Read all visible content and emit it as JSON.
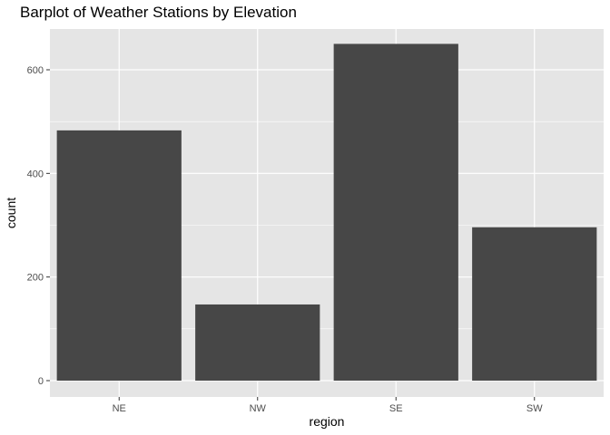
{
  "chart_data": {
    "type": "bar",
    "title": "Barplot of Weather Stations by Elevation",
    "xlabel": "region",
    "ylabel": "count",
    "categories": [
      "NE",
      "NW",
      "SE",
      "SW"
    ],
    "values": [
      483,
      147,
      650,
      296
    ],
    "ylim": [
      0,
      680
    ],
    "yticks": [
      0,
      200,
      400,
      600
    ],
    "grid": true,
    "legend": "none",
    "colors": {
      "panel": "#e5e5e5",
      "grid_major": "#ffffff",
      "bar": "#474747",
      "tick_text": "#4d4d4d",
      "tick_mark": "#333333"
    }
  }
}
